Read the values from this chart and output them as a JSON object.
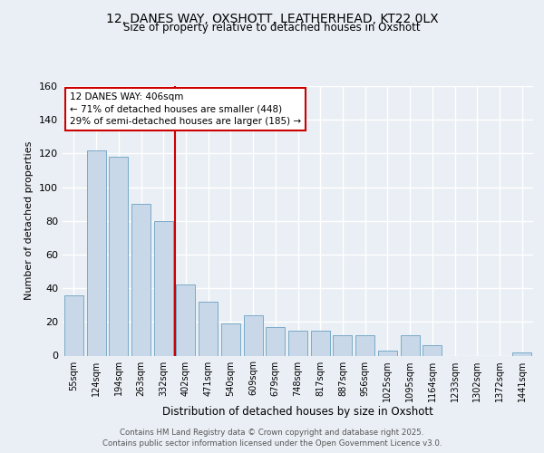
{
  "title1": "12, DANES WAY, OXSHOTT, LEATHERHEAD, KT22 0LX",
  "title2": "Size of property relative to detached houses in Oxshott",
  "xlabel": "Distribution of detached houses by size in Oxshott",
  "ylabel": "Number of detached properties",
  "categories": [
    "55sqm",
    "124sqm",
    "194sqm",
    "263sqm",
    "332sqm",
    "402sqm",
    "471sqm",
    "540sqm",
    "609sqm",
    "679sqm",
    "748sqm",
    "817sqm",
    "887sqm",
    "956sqm",
    "1025sqm",
    "1095sqm",
    "1164sqm",
    "1233sqm",
    "1302sqm",
    "1372sqm",
    "1441sqm"
  ],
  "values": [
    36,
    122,
    118,
    90,
    80,
    42,
    32,
    19,
    24,
    17,
    15,
    15,
    12,
    12,
    3,
    12,
    6,
    0,
    0,
    0,
    2
  ],
  "bar_color": "#c8d8e8",
  "bar_edge_color": "#7aaac8",
  "vline_index": 5,
  "vline_color": "#cc0000",
  "annotation_text": "12 DANES WAY: 406sqm\n← 71% of detached houses are smaller (448)\n29% of semi-detached houses are larger (185) →",
  "annotation_box_color": "#cc0000",
  "ylim": [
    0,
    160
  ],
  "yticks": [
    0,
    20,
    40,
    60,
    80,
    100,
    120,
    140,
    160
  ],
  "footer": "Contains HM Land Registry data © Crown copyright and database right 2025.\nContains public sector information licensed under the Open Government Licence v3.0.",
  "bg_color": "#eaeff5",
  "plot_bg_color": "#eaeff5",
  "grid_color": "#ffffff"
}
